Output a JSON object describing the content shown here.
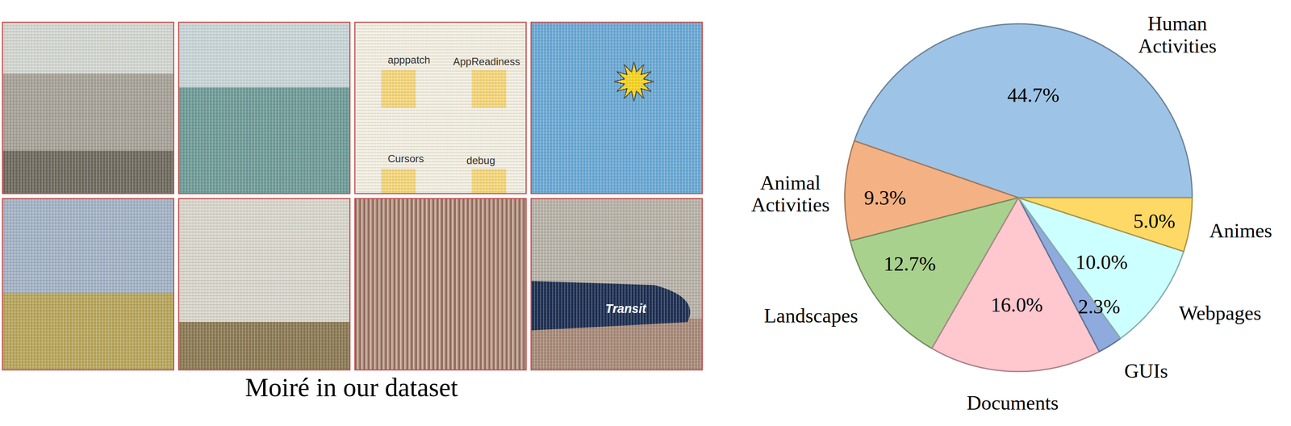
{
  "chart_data": {
    "type": "pie",
    "categories": [
      "Human Activities",
      "Animal Activities",
      "Landscapes",
      "Documents",
      "GUIs",
      "Webpages",
      "Animes"
    ],
    "values": [
      44.7,
      9.3,
      12.7,
      16.0,
      2.3,
      10.0,
      5.0
    ],
    "value_labels": [
      "44.7%",
      "9.3%",
      "12.7%",
      "16.0%",
      "2.3%",
      "10.0%",
      "5.0%"
    ],
    "colors": [
      "#9dc3e6",
      "#f4b183",
      "#a9d18e",
      "#ffc7ce",
      "#8faadc",
      "#ccffff",
      "#ffd966"
    ],
    "data_labels": true
  },
  "figure": {
    "caption": "Moiré in our dataset",
    "tiles": [
      {
        "color": "#a7a298"
      },
      {
        "color": "#6f9c98"
      },
      {
        "color": "#f3efe2",
        "texts": [
          "apppatch",
          "AppReadiness",
          "Cursors",
          "debug"
        ]
      },
      {
        "color": "#6aa9d6"
      },
      {
        "color": "#a3b3c6"
      },
      {
        "color": "#d9d7cc"
      },
      {
        "color": "#b89c8a"
      },
      {
        "color": "#b8b2a8",
        "texts": [
          "Transit"
        ]
      }
    ]
  }
}
